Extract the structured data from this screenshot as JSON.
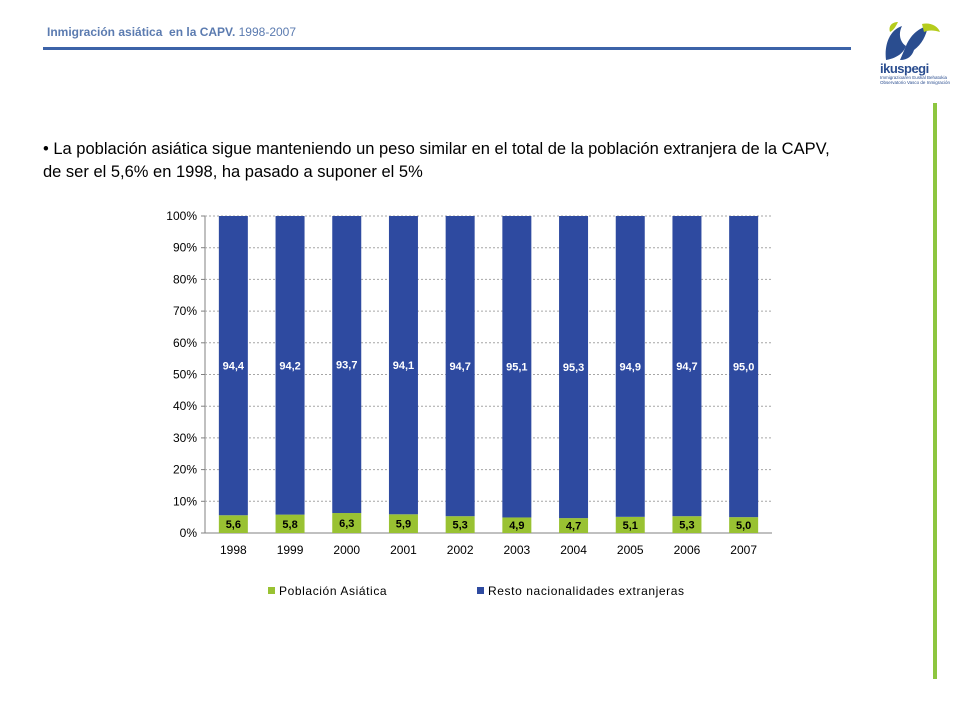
{
  "header": {
    "title_bold": "Inmigración asiática  en la CAPV.",
    "title_years": " 1998-2007"
  },
  "logo": {
    "name": "ikuspegi",
    "subtitle_lines": [
      "Immigrazioaren Euskal Behatokia",
      "Observatorio Vasco de Inmigración"
    ]
  },
  "body": {
    "text": "• La población asiática sigue manteniendo un peso similar en el total de la población extranjera de la CAPV, de ser el 5,6% en 1998, ha pasado a suponer el 5%"
  },
  "colors": {
    "accent_blue": "#3c63a8",
    "accent_green": "#8dc63f",
    "series_asian": "#99c232",
    "series_rest": "#2e4aa0"
  },
  "chart_data": {
    "type": "bar",
    "stacked": true,
    "categories": [
      "1998",
      "1999",
      "2000",
      "2001",
      "2002",
      "2003",
      "2004",
      "2005",
      "2006",
      "2007"
    ],
    "series": [
      {
        "name": "Población Asiática",
        "values": [
          5.6,
          5.8,
          6.3,
          5.9,
          5.3,
          4.9,
          4.7,
          5.1,
          5.3,
          5.0
        ],
        "labels": [
          "5,6",
          "5,8",
          "6,3",
          "5,9",
          "5,3",
          "4,9",
          "4,7",
          "5,1",
          "5,3",
          "5,0"
        ]
      },
      {
        "name": "Resto nacionalidades extranjeras",
        "values": [
          94.4,
          94.2,
          93.7,
          94.1,
          94.7,
          95.1,
          95.3,
          94.9,
          94.7,
          95.0
        ],
        "labels": [
          "94,4",
          "94,2",
          "93,7",
          "94,1",
          "94,7",
          "95,1",
          "95,3",
          "94,9",
          "94,7",
          "95,0"
        ]
      }
    ],
    "y_ticks": [
      "0%",
      "10%",
      "20%",
      "30%",
      "40%",
      "50%",
      "60%",
      "70%",
      "80%",
      "90%",
      "100%"
    ],
    "ylim": [
      0,
      100
    ],
    "grid": true,
    "legend_position": "bottom"
  }
}
